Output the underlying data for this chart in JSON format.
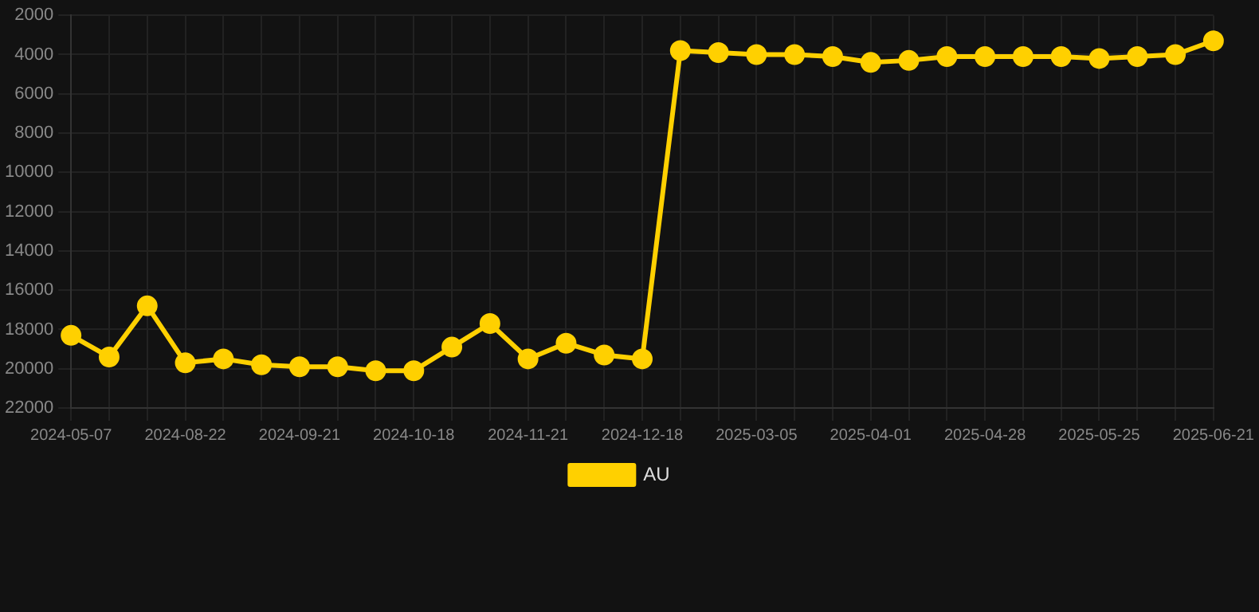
{
  "chart_data": {
    "type": "line",
    "categories": [
      "2024-05-07",
      null,
      null,
      "2024-08-22",
      null,
      null,
      "2024-09-21",
      null,
      null,
      "2024-10-18",
      null,
      null,
      "2024-11-21",
      null,
      null,
      "2024-12-18",
      null,
      null,
      "2025-03-05",
      null,
      null,
      "2025-04-01",
      null,
      null,
      "2025-04-28",
      null,
      null,
      "2025-05-25",
      null,
      null,
      "2025-06-21"
    ],
    "series": [
      {
        "name": "AU",
        "color": "#ffd000",
        "values": [
          18300,
          19400,
          16800,
          19700,
          19500,
          19800,
          19900,
          19900,
          20100,
          20100,
          18900,
          17700,
          19500,
          18700,
          19300,
          19500,
          3800,
          3900,
          4000,
          4000,
          4100,
          4400,
          4300,
          4100,
          4100,
          4100,
          4100,
          4200,
          4100,
          4000,
          3300
        ]
      }
    ],
    "ylim": [
      22000,
      2000
    ],
    "yticks": [
      2000,
      4000,
      6000,
      8000,
      10000,
      12000,
      14000,
      16000,
      18000,
      20000,
      22000
    ],
    "grid": true,
    "legend": "bottom",
    "marker": "circle",
    "line_style": "solid"
  }
}
